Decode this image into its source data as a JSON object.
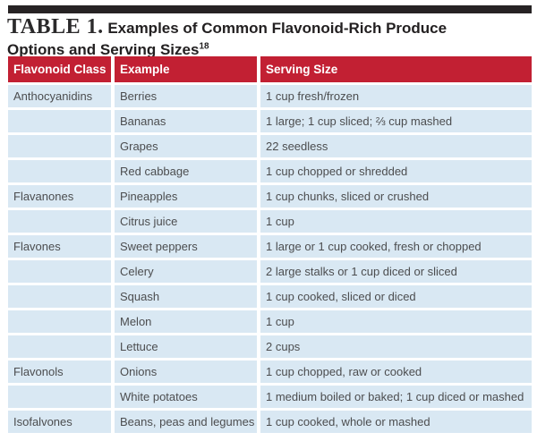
{
  "title": {
    "label": "TABLE 1.",
    "line1_rest": " Examples of Common Flavonoid-Rich Produce",
    "line2": "Options and Serving Sizes",
    "reference_superscript": "18"
  },
  "table": {
    "headers": [
      "Flavonoid Class",
      "Example",
      "Serving Size"
    ],
    "rows": [
      {
        "flavonoid_class": "Anthocyanidins",
        "example": "Berries",
        "serving_size": "1 cup fresh/frozen"
      },
      {
        "flavonoid_class": "",
        "example": "Bananas",
        "serving_size": "1 large; 1 cup sliced; ⅔ cup mashed"
      },
      {
        "flavonoid_class": "",
        "example": "Grapes",
        "serving_size": "22 seedless"
      },
      {
        "flavonoid_class": "",
        "example": "Red cabbage",
        "serving_size": "1 cup chopped or shredded"
      },
      {
        "flavonoid_class": "Flavanones",
        "example": "Pineapples",
        "serving_size": "1 cup chunks, sliced or crushed"
      },
      {
        "flavonoid_class": "",
        "example": "Citrus juice",
        "serving_size": "1 cup"
      },
      {
        "flavonoid_class": "Flavones",
        "example": "Sweet peppers",
        "serving_size": "1 large or 1 cup cooked, fresh or chopped"
      },
      {
        "flavonoid_class": "",
        "example": "Celery",
        "serving_size": "2 large stalks or 1 cup diced or sliced"
      },
      {
        "flavonoid_class": "",
        "example": "Squash",
        "serving_size": "1 cup cooked, sliced or diced"
      },
      {
        "flavonoid_class": "",
        "example": "Melon",
        "serving_size": "1 cup"
      },
      {
        "flavonoid_class": "",
        "example": "Lettuce",
        "serving_size": "2 cups"
      },
      {
        "flavonoid_class": "Flavonols",
        "example": "Onions",
        "serving_size": "1 cup chopped, raw or cooked"
      },
      {
        "flavonoid_class": "",
        "example": "White potatoes",
        "serving_size": "1 medium boiled or baked; 1 cup diced or mashed"
      },
      {
        "flavonoid_class": "Isofalvones",
        "example": "Beans, peas and legumes",
        "serving_size": "1 cup cooked, whole or mashed"
      }
    ]
  },
  "colors": {
    "top_bar_black": "#272324",
    "header_red": "#c22033",
    "header_text": "#ffffff",
    "row_blue": "#d9e8f3",
    "body_text": "#4c4d4f",
    "title_text": "#232021"
  }
}
